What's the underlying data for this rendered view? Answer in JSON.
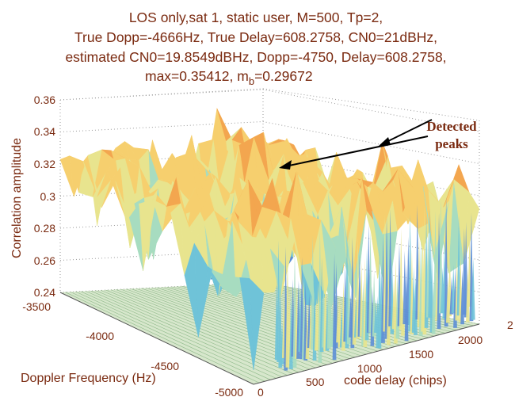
{
  "chart_data": {
    "type": "surface",
    "title_lines": [
      "LOS only,sat 1, static user, M=500, Tp=2,",
      "True Dopp=-4666Hz, True Delay=608.2758, CN0=21dBHz,",
      "estimated CN0=19.8549dBHz, Dopp=-4750, Delay=608.2758,"
    ],
    "title_last_prefix": "max=0.35412, m",
    "title_last_sub": "b",
    "title_last_suffix": "=0.29672",
    "zlabel": "Correlation amplitude",
    "xlabel": "code delay (chips)",
    "ylabel": "Doppler Frequency (Hz)",
    "zlim": [
      0.24,
      0.36
    ],
    "z_ticks": [
      "0.24",
      "0.26",
      "0.28",
      "0.3",
      "0.32",
      "0.34",
      "0.36"
    ],
    "x_ticks": [
      "0",
      "500",
      "1000",
      "1500",
      "2000"
    ],
    "x_tick_partial": "2",
    "y_ticks": [
      "-3500",
      "-4000",
      "-4500",
      "-5000"
    ],
    "xlim": [
      0,
      2046
    ],
    "ylim": [
      -5000,
      -3500
    ],
    "grid": true,
    "annotation": {
      "line1": "Detected",
      "line2": "peaks"
    },
    "peaks": [
      {
        "delay": 608.2758,
        "doppler": -4750,
        "value": 0.35412
      },
      {
        "delay": 1000,
        "doppler": -3700,
        "value": 0.33
      }
    ],
    "colormap": [
      "#4e58b8",
      "#5d8ed6",
      "#6fc3d8",
      "#a7dcc0",
      "#e8e48e",
      "#f6cf6e",
      "#f3a64f",
      "#ec7a38"
    ]
  }
}
